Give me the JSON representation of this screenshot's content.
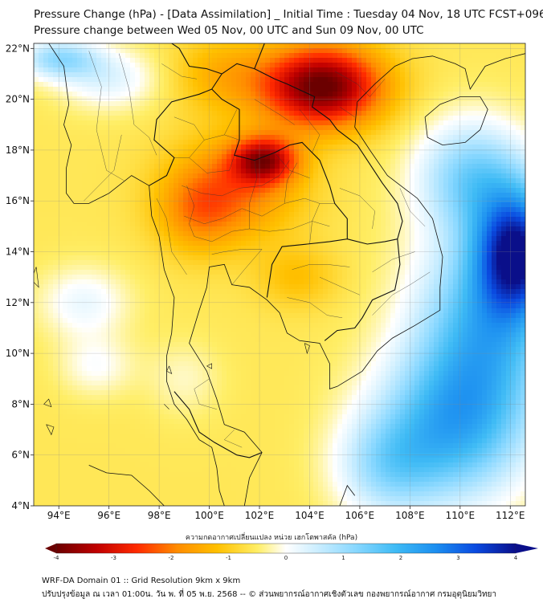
{
  "title": {
    "line1": "Pressure Change (hPa) - [Data Assimilation] _ Initial Time : Tuesday 04 Nov, 18 UTC FCST+096",
    "line2": "Pressure change between Wed 05 Nov, 00 UTC and Sun 09 Nov, 00 UTC"
  },
  "axes": {
    "lon_min": 93,
    "lon_max": 112.6,
    "lat_min": 4,
    "lat_max": 22.2,
    "x_ticks": [
      {
        "value": 94,
        "label": "94°E"
      },
      {
        "value": 96,
        "label": "96°E"
      },
      {
        "value": 98,
        "label": "98°E"
      },
      {
        "value": 100,
        "label": "100°E"
      },
      {
        "value": 102,
        "label": "102°E"
      },
      {
        "value": 104,
        "label": "104°E"
      },
      {
        "value": 106,
        "label": "106°E"
      },
      {
        "value": 108,
        "label": "108°E"
      },
      {
        "value": 110,
        "label": "110°E"
      },
      {
        "value": 112,
        "label": "112°E"
      }
    ],
    "y_ticks": [
      {
        "value": 22,
        "label": "22°N"
      },
      {
        "value": 20,
        "label": "20°N"
      },
      {
        "value": 18,
        "label": "18°N"
      },
      {
        "value": 16,
        "label": "16°N"
      },
      {
        "value": 14,
        "label": "14°N"
      },
      {
        "value": 12,
        "label": "12°N"
      },
      {
        "value": 10,
        "label": "10°N"
      },
      {
        "value": 8,
        "label": "8°N"
      },
      {
        "value": 6,
        "label": "6°N"
      },
      {
        "value": 4,
        "label": "4°N"
      }
    ]
  },
  "field": {
    "base_value": -0.6,
    "blobs": [
      {
        "lon": 104.5,
        "lat": 20.5,
        "amp": -3.5,
        "rlon": 2.4,
        "rlat": 1.6
      },
      {
        "lon": 102.2,
        "lat": 17.6,
        "amp": -2.5,
        "rlon": 1.3,
        "rlat": 0.9
      },
      {
        "lon": 101.0,
        "lat": 16.5,
        "amp": -1.4,
        "rlon": 2.6,
        "rlat": 2.0
      },
      {
        "lon": 99.5,
        "lat": 15.5,
        "amp": -0.9,
        "rlon": 1.6,
        "rlat": 1.6
      },
      {
        "lon": 103.5,
        "lat": 13.0,
        "amp": -0.6,
        "rlon": 1.6,
        "rlat": 1.2
      },
      {
        "lon": 100.5,
        "lat": 21.0,
        "amp": -0.8,
        "rlon": 2.0,
        "rlat": 1.5
      },
      {
        "lon": 112.3,
        "lat": 14.0,
        "amp": 3.8,
        "rlon": 1.6,
        "rlat": 2.4
      },
      {
        "lon": 111.0,
        "lat": 11.0,
        "amp": 2.4,
        "rlon": 2.8,
        "rlat": 4.0
      },
      {
        "lon": 109.5,
        "lat": 7.0,
        "amp": 2.2,
        "rlon": 3.0,
        "rlat": 3.0
      },
      {
        "lon": 110.5,
        "lat": 17.0,
        "amp": 1.8,
        "rlon": 2.2,
        "rlat": 2.2
      },
      {
        "lon": 107.0,
        "lat": 5.5,
        "amp": 1.2,
        "rlon": 2.0,
        "rlat": 2.0
      },
      {
        "lon": 94.0,
        "lat": 21.6,
        "amp": 1.6,
        "rlon": 1.6,
        "rlat": 0.8
      },
      {
        "lon": 95.0,
        "lat": 12.0,
        "amp": 0.8,
        "rlon": 1.8,
        "rlat": 1.4
      },
      {
        "lon": 95.5,
        "lat": 9.5,
        "amp": 0.6,
        "rlon": 1.5,
        "rlat": 1.2
      },
      {
        "lon": 96.0,
        "lat": 20.8,
        "amp": 0.9,
        "rlon": 2.0,
        "rlat": 1.2
      },
      {
        "lon": 99.0,
        "lat": 9.0,
        "amp": 0.4,
        "rlon": 1.5,
        "rlat": 1.5
      }
    ]
  },
  "colorbar": {
    "min": -4,
    "max": 4,
    "tick_values": [
      -4,
      -3,
      -2,
      -1,
      0,
      1,
      2,
      3,
      4
    ],
    "tick_labels": [
      "-4",
      "-3",
      "-2",
      "-1",
      "0",
      "1",
      "2",
      "3",
      "4"
    ],
    "title": "ความกดอากาศเปลี่ยนแปลง หน่วย เฮกโตพาสคัล (hPa)",
    "stops": [
      {
        "v": -4.0,
        "c": "#6b0000"
      },
      {
        "v": -3.3,
        "c": "#c00000"
      },
      {
        "v": -2.6,
        "c": "#ff2a00"
      },
      {
        "v": -1.9,
        "c": "#ff8c00"
      },
      {
        "v": -1.2,
        "c": "#ffc000"
      },
      {
        "v": -0.5,
        "c": "#ffee66"
      },
      {
        "v": 0.0,
        "c": "#ffffff"
      },
      {
        "v": 0.5,
        "c": "#cfefff"
      },
      {
        "v": 1.2,
        "c": "#8ad8ff"
      },
      {
        "v": 1.9,
        "c": "#3fbbf5"
      },
      {
        "v": 2.6,
        "c": "#1c8ff0"
      },
      {
        "v": 3.3,
        "c": "#0a4ae0"
      },
      {
        "v": 4.0,
        "c": "#0a0f8a"
      }
    ]
  },
  "footer": {
    "line1": "WRF-DA Domain 01 :: Grid Resolution 9km x 9km",
    "line2": "ปรับปรุงข้อมูล ณ เวลา 01:00น. วัน พ. ที่ 05 พ.ย. 2568 -- © ส่วนพยากรณ์อากาศเชิงตัวเลข กองพยากรณ์อากาศ กรมอุตุนิยมวิทยา"
  },
  "coastlines": [
    [
      [
        93.6,
        22.2
      ],
      [
        94.2,
        21.3
      ],
      [
        94.4,
        19.8
      ],
      [
        94.2,
        19.0
      ],
      [
        94.5,
        18.2
      ],
      [
        94.3,
        17.3
      ],
      [
        94.3,
        16.3
      ],
      [
        94.6,
        15.9
      ],
      [
        95.2,
        15.9
      ],
      [
        96.0,
        16.3
      ],
      [
        96.9,
        17.0
      ],
      [
        97.6,
        16.6
      ],
      [
        97.7,
        15.4
      ],
      [
        98.0,
        14.6
      ],
      [
        98.2,
        13.3
      ],
      [
        98.6,
        12.2
      ],
      [
        98.5,
        10.8
      ],
      [
        98.3,
        9.9
      ],
      [
        98.3,
        8.9
      ],
      [
        98.6,
        8.0
      ],
      [
        99.1,
        7.4
      ],
      [
        99.6,
        6.6
      ],
      [
        100.1,
        6.3
      ],
      [
        100.3,
        5.5
      ],
      [
        100.4,
        4.6
      ],
      [
        100.6,
        4.0
      ]
    ],
    [
      [
        101.4,
        4.0
      ],
      [
        101.6,
        5.1
      ],
      [
        102.1,
        6.1
      ],
      [
        101.4,
        6.9
      ],
      [
        100.6,
        7.2
      ],
      [
        100.3,
        8.2
      ],
      [
        99.9,
        9.3
      ],
      [
        99.2,
        10.4
      ],
      [
        99.6,
        11.7
      ],
      [
        99.9,
        12.6
      ],
      [
        100.0,
        13.4
      ],
      [
        100.6,
        13.5
      ],
      [
        100.9,
        12.7
      ],
      [
        101.6,
        12.6
      ],
      [
        102.3,
        12.1
      ],
      [
        102.8,
        11.6
      ],
      [
        103.1,
        10.8
      ],
      [
        103.6,
        10.5
      ],
      [
        104.4,
        10.4
      ],
      [
        104.8,
        9.6
      ],
      [
        104.8,
        8.6
      ],
      [
        105.1,
        8.7
      ],
      [
        106.1,
        9.3
      ],
      [
        106.7,
        10.1
      ],
      [
        107.3,
        10.6
      ],
      [
        108.2,
        11.1
      ],
      [
        109.2,
        11.7
      ],
      [
        109.2,
        12.6
      ],
      [
        109.3,
        13.8
      ],
      [
        108.9,
        15.3
      ],
      [
        108.3,
        16.1
      ],
      [
        107.1,
        17.0
      ],
      [
        106.4,
        18.0
      ],
      [
        105.8,
        18.9
      ],
      [
        105.9,
        19.9
      ],
      [
        106.6,
        20.6
      ],
      [
        107.4,
        21.3
      ],
      [
        108.1,
        21.6
      ],
      [
        108.9,
        21.7
      ],
      [
        109.8,
        21.4
      ],
      [
        110.2,
        21.2
      ],
      [
        110.4,
        20.4
      ],
      [
        111.0,
        21.3
      ],
      [
        111.8,
        21.6
      ],
      [
        112.6,
        21.8
      ]
    ],
    [
      [
        108.6,
        19.3
      ],
      [
        109.2,
        19.8
      ],
      [
        110.0,
        20.1
      ],
      [
        110.8,
        20.1
      ],
      [
        111.1,
        19.6
      ],
      [
        110.8,
        18.8
      ],
      [
        110.2,
        18.3
      ],
      [
        109.3,
        18.2
      ],
      [
        108.7,
        18.5
      ],
      [
        108.6,
        19.3
      ]
    ],
    [
      [
        95.2,
        5.6
      ],
      [
        95.9,
        5.3
      ],
      [
        96.9,
        5.2
      ],
      [
        97.6,
        4.6
      ],
      [
        98.2,
        4.0
      ]
    ],
    [
      [
        105.2,
        4.0
      ],
      [
        105.5,
        4.8
      ],
      [
        105.8,
        4.4
      ]
    ]
  ],
  "borders": [
    [
      [
        97.6,
        16.6
      ],
      [
        98.3,
        17.0
      ],
      [
        98.6,
        17.7
      ],
      [
        97.8,
        18.4
      ],
      [
        97.9,
        19.2
      ],
      [
        98.5,
        19.9
      ],
      [
        99.6,
        20.2
      ],
      [
        100.1,
        20.4
      ],
      [
        100.5,
        20.0
      ],
      [
        101.2,
        19.6
      ],
      [
        101.2,
        18.4
      ],
      [
        101.0,
        17.8
      ],
      [
        101.8,
        17.6
      ],
      [
        102.6,
        17.9
      ],
      [
        103.2,
        18.2
      ],
      [
        103.7,
        18.3
      ],
      [
        104.4,
        17.6
      ],
      [
        104.8,
        16.6
      ],
      [
        105.0,
        15.9
      ],
      [
        105.5,
        15.3
      ],
      [
        105.5,
        14.5
      ],
      [
        104.8,
        14.4
      ],
      [
        103.9,
        14.3
      ],
      [
        102.9,
        14.2
      ],
      [
        102.5,
        13.5
      ],
      [
        102.3,
        12.2
      ]
    ],
    [
      [
        100.1,
        20.4
      ],
      [
        100.5,
        21.0
      ],
      [
        101.1,
        21.4
      ],
      [
        101.8,
        21.2
      ],
      [
        102.2,
        22.2
      ]
    ],
    [
      [
        101.8,
        21.2
      ],
      [
        102.6,
        20.8
      ],
      [
        103.1,
        20.6
      ],
      [
        104.2,
        20.1
      ],
      [
        104.1,
        19.7
      ],
      [
        104.8,
        19.2
      ],
      [
        105.1,
        18.8
      ],
      [
        105.9,
        18.2
      ],
      [
        106.5,
        17.3
      ],
      [
        106.9,
        16.7
      ],
      [
        107.5,
        15.9
      ],
      [
        107.7,
        15.2
      ],
      [
        107.5,
        14.5
      ]
    ],
    [
      [
        105.5,
        14.5
      ],
      [
        106.3,
        14.3
      ],
      [
        107.0,
        14.4
      ],
      [
        107.5,
        14.5
      ],
      [
        107.6,
        13.5
      ],
      [
        107.4,
        12.5
      ],
      [
        106.5,
        12.1
      ],
      [
        106.1,
        11.4
      ],
      [
        105.8,
        11.0
      ],
      [
        105.1,
        10.9
      ],
      [
        104.6,
        10.5
      ]
    ],
    [
      [
        98.6,
        8.5
      ],
      [
        99.2,
        7.8
      ],
      [
        99.6,
        6.9
      ],
      [
        100.2,
        6.5
      ],
      [
        101.1,
        6.0
      ],
      [
        101.6,
        5.9
      ],
      [
        102.1,
        6.1
      ]
    ],
    [
      [
        97.6,
        23.0
      ],
      [
        97.9,
        22.6
      ],
      [
        98.8,
        22.0
      ],
      [
        99.2,
        21.3
      ],
      [
        99.9,
        21.2
      ],
      [
        100.5,
        21.0
      ]
    ]
  ],
  "provinces": [
    [
      [
        98.6,
        19.3
      ],
      [
        99.4,
        19.0
      ],
      [
        99.8,
        18.4
      ],
      [
        99.2,
        17.7
      ],
      [
        98.6,
        17.7
      ]
    ],
    [
      [
        99.8,
        18.4
      ],
      [
        100.6,
        18.6
      ],
      [
        101.2,
        18.4
      ]
    ],
    [
      [
        99.2,
        17.7
      ],
      [
        99.9,
        17.1
      ],
      [
        100.8,
        17.2
      ],
      [
        101.0,
        17.8
      ]
    ],
    [
      [
        98.9,
        16.6
      ],
      [
        99.7,
        16.3
      ],
      [
        100.5,
        16.2
      ],
      [
        101.2,
        16.5
      ],
      [
        102.1,
        16.6
      ],
      [
        102.8,
        17.0
      ],
      [
        103.2,
        17.6
      ]
    ],
    [
      [
        99.0,
        15.4
      ],
      [
        99.8,
        15.1
      ],
      [
        100.5,
        15.3
      ],
      [
        101.3,
        15.7
      ],
      [
        102.1,
        15.4
      ],
      [
        103.0,
        15.9
      ],
      [
        103.8,
        16.1
      ],
      [
        104.4,
        15.9
      ],
      [
        105.0,
        15.9
      ]
    ],
    [
      [
        99.4,
        14.6
      ],
      [
        100.1,
        14.4
      ],
      [
        100.9,
        14.8
      ],
      [
        101.6,
        14.9
      ],
      [
        102.4,
        14.8
      ],
      [
        103.3,
        14.9
      ],
      [
        104.1,
        15.2
      ],
      [
        104.8,
        15.0
      ]
    ],
    [
      [
        100.1,
        13.9
      ],
      [
        100.6,
        14.0
      ],
      [
        101.3,
        14.1
      ],
      [
        102.1,
        14.1
      ]
    ],
    [
      [
        101.6,
        14.9
      ],
      [
        101.6,
        15.9
      ],
      [
        101.9,
        16.9
      ],
      [
        101.8,
        17.6
      ]
    ],
    [
      [
        103.0,
        15.9
      ],
      [
        103.1,
        16.8
      ],
      [
        103.5,
        17.5
      ]
    ],
    [
      [
        104.0,
        14.3
      ],
      [
        104.1,
        15.2
      ],
      [
        104.4,
        15.9
      ]
    ],
    [
      [
        100.9,
        12.7
      ],
      [
        101.4,
        13.3
      ],
      [
        102.1,
        14.1
      ]
    ],
    [
      [
        99.1,
        16.6
      ],
      [
        99.4,
        15.8
      ],
      [
        99.2,
        15.1
      ],
      [
        99.4,
        14.6
      ]
    ],
    [
      [
        101.1,
        19.6
      ],
      [
        100.8,
        19.0
      ],
      [
        100.6,
        18.6
      ]
    ],
    [
      [
        101.8,
        20.0
      ],
      [
        102.8,
        19.4
      ],
      [
        103.4,
        19.0
      ]
    ],
    [
      [
        102.6,
        17.9
      ],
      [
        103.2,
        17.2
      ],
      [
        104.0,
        16.9
      ]
    ],
    [
      [
        105.2,
        16.5
      ],
      [
        106.0,
        16.2
      ],
      [
        106.6,
        15.6
      ],
      [
        106.5,
        14.9
      ]
    ],
    [
      [
        103.6,
        19.6
      ],
      [
        104.4,
        18.6
      ],
      [
        104.1,
        17.9
      ]
    ],
    [
      [
        104.4,
        13.0
      ],
      [
        105.3,
        12.6
      ],
      [
        106.0,
        12.3
      ]
    ],
    [
      [
        103.3,
        13.3
      ],
      [
        104.0,
        13.5
      ],
      [
        104.7,
        13.5
      ],
      [
        105.6,
        13.4
      ]
    ],
    [
      [
        103.1,
        12.2
      ],
      [
        104.0,
        12.0
      ],
      [
        104.7,
        11.5
      ],
      [
        105.3,
        11.4
      ]
    ],
    [
      [
        105.0,
        21.1
      ],
      [
        105.9,
        20.6
      ],
      [
        106.4,
        20.1
      ],
      [
        107.0,
        20.8
      ]
    ],
    [
      [
        105.2,
        19.7
      ],
      [
        105.8,
        19.3
      ]
    ],
    [
      [
        98.1,
        21.4
      ],
      [
        98.9,
        20.9
      ],
      [
        99.5,
        20.8
      ]
    ],
    [
      [
        96.4,
        21.8
      ],
      [
        96.8,
        20.4
      ],
      [
        97.0,
        19.0
      ],
      [
        97.6,
        18.5
      ],
      [
        97.9,
        17.8
      ]
    ],
    [
      [
        95.2,
        21.9
      ],
      [
        95.7,
        20.5
      ],
      [
        95.5,
        18.8
      ],
      [
        95.9,
        17.2
      ],
      [
        96.6,
        16.8
      ]
    ],
    [
      [
        95.0,
        16.0
      ],
      [
        96.2,
        17.2
      ],
      [
        96.5,
        18.6
      ]
    ],
    [
      [
        97.9,
        16.1
      ],
      [
        98.3,
        15.3
      ],
      [
        98.5,
        14.0
      ],
      [
        99.1,
        13.1
      ]
    ],
    [
      [
        106.5,
        13.2
      ],
      [
        107.3,
        13.7
      ],
      [
        108.2,
        14.0
      ]
    ],
    [
      [
        106.5,
        11.5
      ],
      [
        107.3,
        12.3
      ],
      [
        108.0,
        12.7
      ],
      [
        108.8,
        13.2
      ]
    ],
    [
      [
        107.6,
        16.5
      ],
      [
        108.0,
        15.6
      ],
      [
        108.6,
        15.0
      ]
    ],
    [
      [
        101.0,
        7.0
      ],
      [
        100.6,
        6.6
      ],
      [
        101.3,
        6.3
      ]
    ],
    [
      [
        100.0,
        9.0
      ],
      [
        99.4,
        8.6
      ],
      [
        99.6,
        8.0
      ],
      [
        100.3,
        7.8
      ]
    ]
  ],
  "islands": [
    [
      [
        98.2,
        8.0
      ],
      [
        98.4,
        7.8
      ],
      [
        98.3,
        7.9
      ],
      [
        98.2,
        8.0
      ]
    ],
    [
      [
        99.9,
        9.5
      ],
      [
        100.1,
        9.6
      ],
      [
        100.1,
        9.4
      ],
      [
        99.9,
        9.5
      ]
    ],
    [
      [
        103.8,
        10.4
      ],
      [
        104.0,
        10.3
      ],
      [
        103.9,
        10.0
      ],
      [
        103.8,
        10.4
      ]
    ],
    [
      [
        93.5,
        7.2
      ],
      [
        93.8,
        7.1
      ],
      [
        93.7,
        6.8
      ],
      [
        93.5,
        7.2
      ]
    ],
    [
      [
        93.4,
        8.0
      ],
      [
        93.6,
        8.2
      ],
      [
        93.7,
        7.9
      ],
      [
        93.4,
        8.0
      ]
    ],
    [
      [
        92.9,
        12.9
      ],
      [
        93.1,
        13.4
      ],
      [
        93.2,
        12.6
      ],
      [
        92.9,
        12.9
      ]
    ],
    [
      [
        98.4,
        9.5
      ],
      [
        98.5,
        9.2
      ],
      [
        98.3,
        9.3
      ],
      [
        98.4,
        9.5
      ]
    ]
  ]
}
